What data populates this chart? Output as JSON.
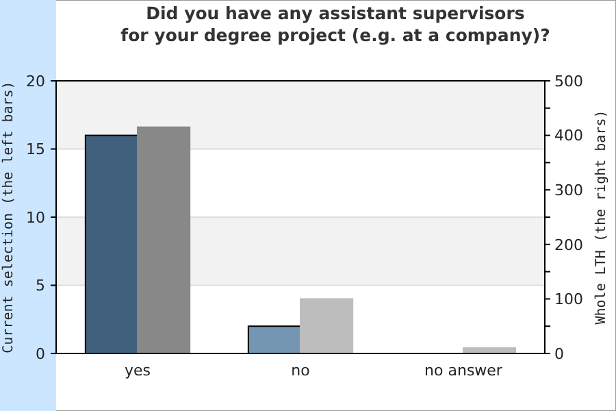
{
  "chart_data": {
    "type": "bar",
    "title": "Did you have any assistant supervisors\nfor your degree project (e.g. at a company)?",
    "ylabel": "Current selection (the left bars)",
    "y2label": "Whole LTH (the right bars)",
    "categories": [
      "yes",
      "no",
      "no answer"
    ],
    "series": [
      {
        "values": [
          16,
          2,
          0
        ],
        "colors": [
          "#40607e",
          "#7596b2",
          "#7596b2"
        ]
      },
      {
        "values": [
          415,
          100,
          10
        ],
        "colors": [
          "#888888",
          "#bdbdbd",
          "#bdbdbd"
        ],
        "axis": "y2"
      }
    ],
    "ylim": [
      0,
      20
    ],
    "yticks": [
      0,
      5,
      10,
      15,
      20
    ],
    "y2lim": [
      0,
      500
    ],
    "y2ticks": [
      0,
      {
        "value": 50,
        "label": null
      },
      100,
      {
        "value": 150,
        "label": null
      },
      200,
      {
        "value": 250,
        "label": null
      },
      300,
      {
        "value": 350,
        "label": null
      },
      400,
      {
        "value": 450,
        "label": null
      },
      500
    ],
    "grid": "y"
  }
}
